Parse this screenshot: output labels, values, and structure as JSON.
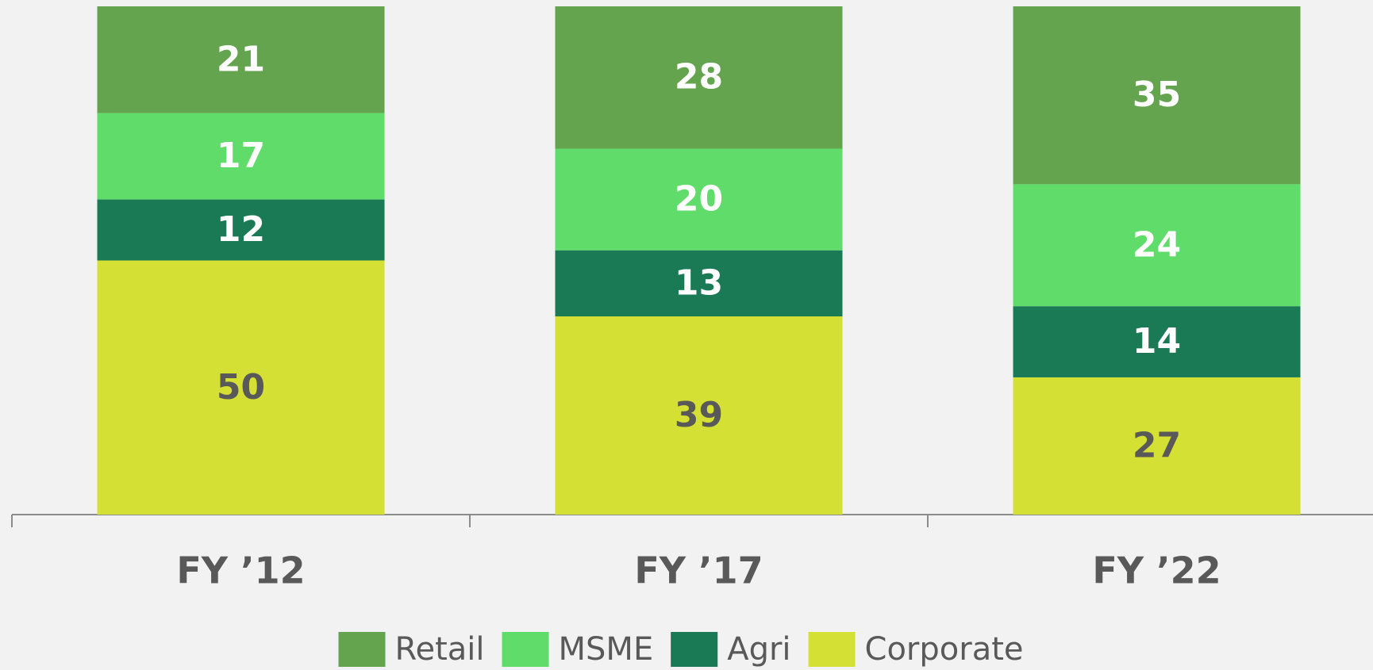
{
  "chart_data": {
    "type": "stacked_bar",
    "categories": [
      "FY ’12",
      "FY ’17",
      "FY ’22"
    ],
    "series": [
      {
        "name": "Retail",
        "color": "#64a44e",
        "label_color": "#ffffff",
        "values": [
          21,
          28,
          35
        ]
      },
      {
        "name": "MSME",
        "color": "#5fdc69",
        "label_color": "#ffffff",
        "values": [
          17,
          20,
          24
        ]
      },
      {
        "name": "Agri",
        "color": "#1a7a56",
        "label_color": "#ffffff",
        "values": [
          12,
          13,
          14
        ]
      },
      {
        "name": "Corporate",
        "color": "#d4e033",
        "label_color": "#595959",
        "values": [
          50,
          39,
          27
        ]
      }
    ],
    "legend": "bottom"
  }
}
